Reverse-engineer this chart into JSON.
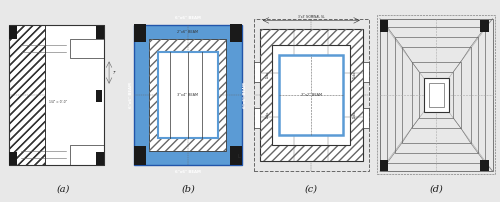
{
  "bg_color": "#e8e8e8",
  "white": "#ffffff",
  "blue": "#5b9bd5",
  "black": "#1a1a1a",
  "dark": "#333333",
  "mid": "#666666",
  "light": "#aaaaaa",
  "labels": [
    "(a)",
    "(b)",
    "(c)",
    "(d)"
  ],
  "figsize": [
    5.0,
    2.02
  ],
  "dpi": 100
}
